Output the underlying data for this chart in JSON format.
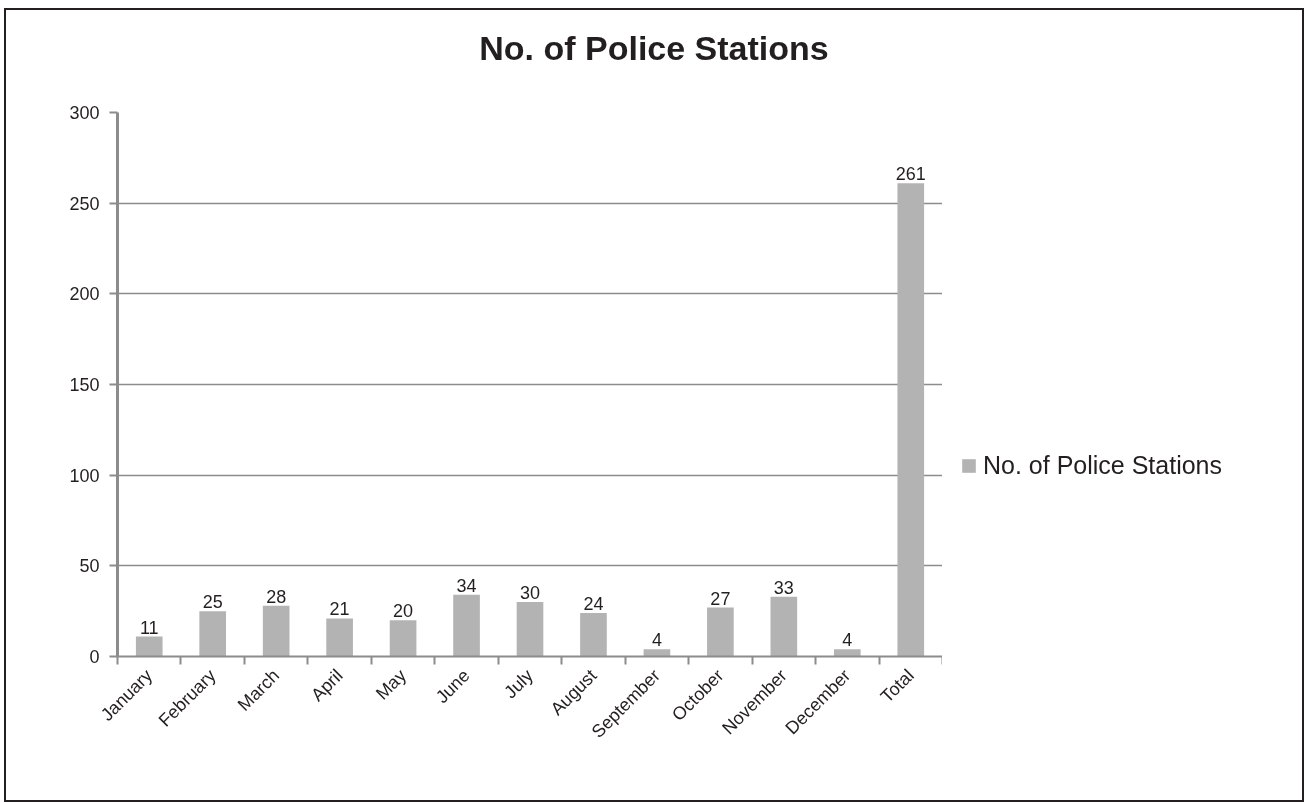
{
  "chart_data": {
    "type": "bar",
    "title": "No. of Police Stations",
    "categories": [
      "January",
      "February",
      "March",
      "April",
      "May",
      "June",
      "July",
      "August",
      "September",
      "October",
      "November",
      "December",
      "Total"
    ],
    "series": [
      {
        "name": "No. of Police Stations",
        "color": "#b3b3b3",
        "values": [
          11,
          25,
          28,
          21,
          20,
          34,
          30,
          24,
          4,
          27,
          33,
          4,
          261
        ]
      }
    ],
    "ylim": [
      0,
      300
    ],
    "yticks": [
      0,
      50,
      100,
      150,
      200,
      250,
      300
    ],
    "grid": "y",
    "legend": "right",
    "data_labels": true
  }
}
